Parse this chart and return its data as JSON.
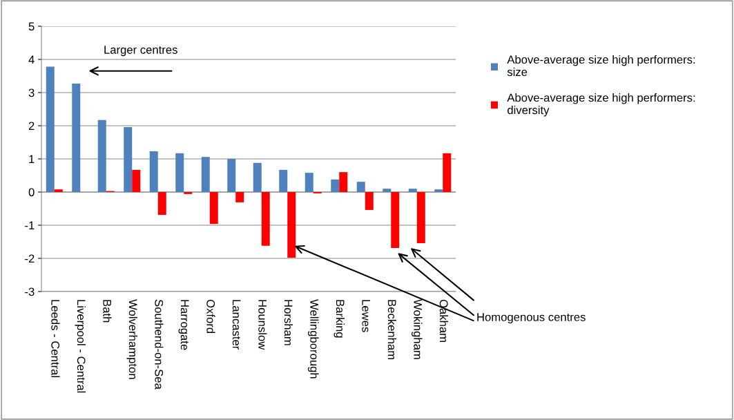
{
  "chart_data": {
    "type": "bar",
    "categories": [
      "Leeds - Central",
      "Liverpool - Central",
      "Bath",
      "Wolverhampton",
      "Southend-on-Sea",
      "Harrogate",
      "Oxford",
      "Lancaster",
      "Hounslow",
      "Horsham",
      "Wellingborough",
      "Barking",
      "Lewes",
      "Beckenham",
      "Wokingham",
      "Oakham"
    ],
    "series": [
      {
        "name": "Above-average size high performers: size",
        "color": "#4f81bd",
        "values": [
          3.78,
          3.27,
          2.17,
          1.96,
          1.23,
          1.17,
          1.06,
          1.0,
          0.88,
          0.67,
          0.58,
          0.38,
          0.31,
          0.1,
          0.1,
          0.08
        ]
      },
      {
        "name": "Above-average size high performers: diversity",
        "color": "#ff0000",
        "values": [
          0.08,
          null,
          0.03,
          0.67,
          -0.69,
          -0.06,
          -0.96,
          -0.31,
          -1.62,
          -1.98,
          -0.04,
          0.6,
          -0.54,
          -1.69,
          -1.54,
          1.17
        ]
      }
    ],
    "ylim": [
      -3,
      5
    ],
    "yticks": [
      -3,
      -2,
      -1,
      0,
      1,
      2,
      3,
      4,
      5
    ],
    "grid": "y",
    "legend": "right",
    "annotations": [
      "Larger centres",
      "Homogenous centres"
    ]
  }
}
